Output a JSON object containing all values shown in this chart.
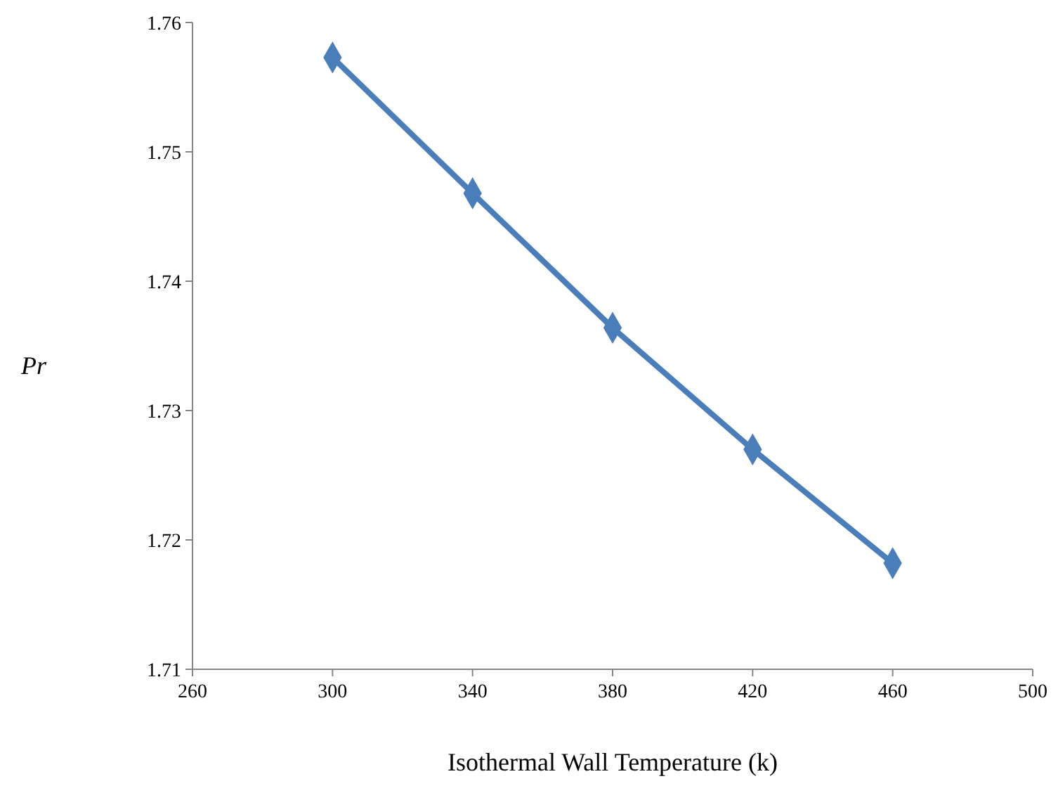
{
  "chart_data": {
    "type": "line",
    "xlabel": "Isothermal Wall Temperature (k)",
    "ylabel": "Pr",
    "x": [
      300,
      340,
      380,
      420,
      460
    ],
    "series": [
      {
        "color": "#4a7ebb",
        "values": [
          1.7573,
          1.7468,
          1.7364,
          1.727,
          1.7182
        ]
      }
    ],
    "xlim": [
      260,
      500
    ],
    "xticks": [
      260,
      300,
      340,
      380,
      420,
      460,
      500
    ],
    "ylim": [
      1.71,
      1.76
    ],
    "yticks": [
      1.71,
      1.72,
      1.73,
      1.74,
      1.75,
      1.76
    ],
    "marker": "diamond",
    "line_style": "solid"
  }
}
